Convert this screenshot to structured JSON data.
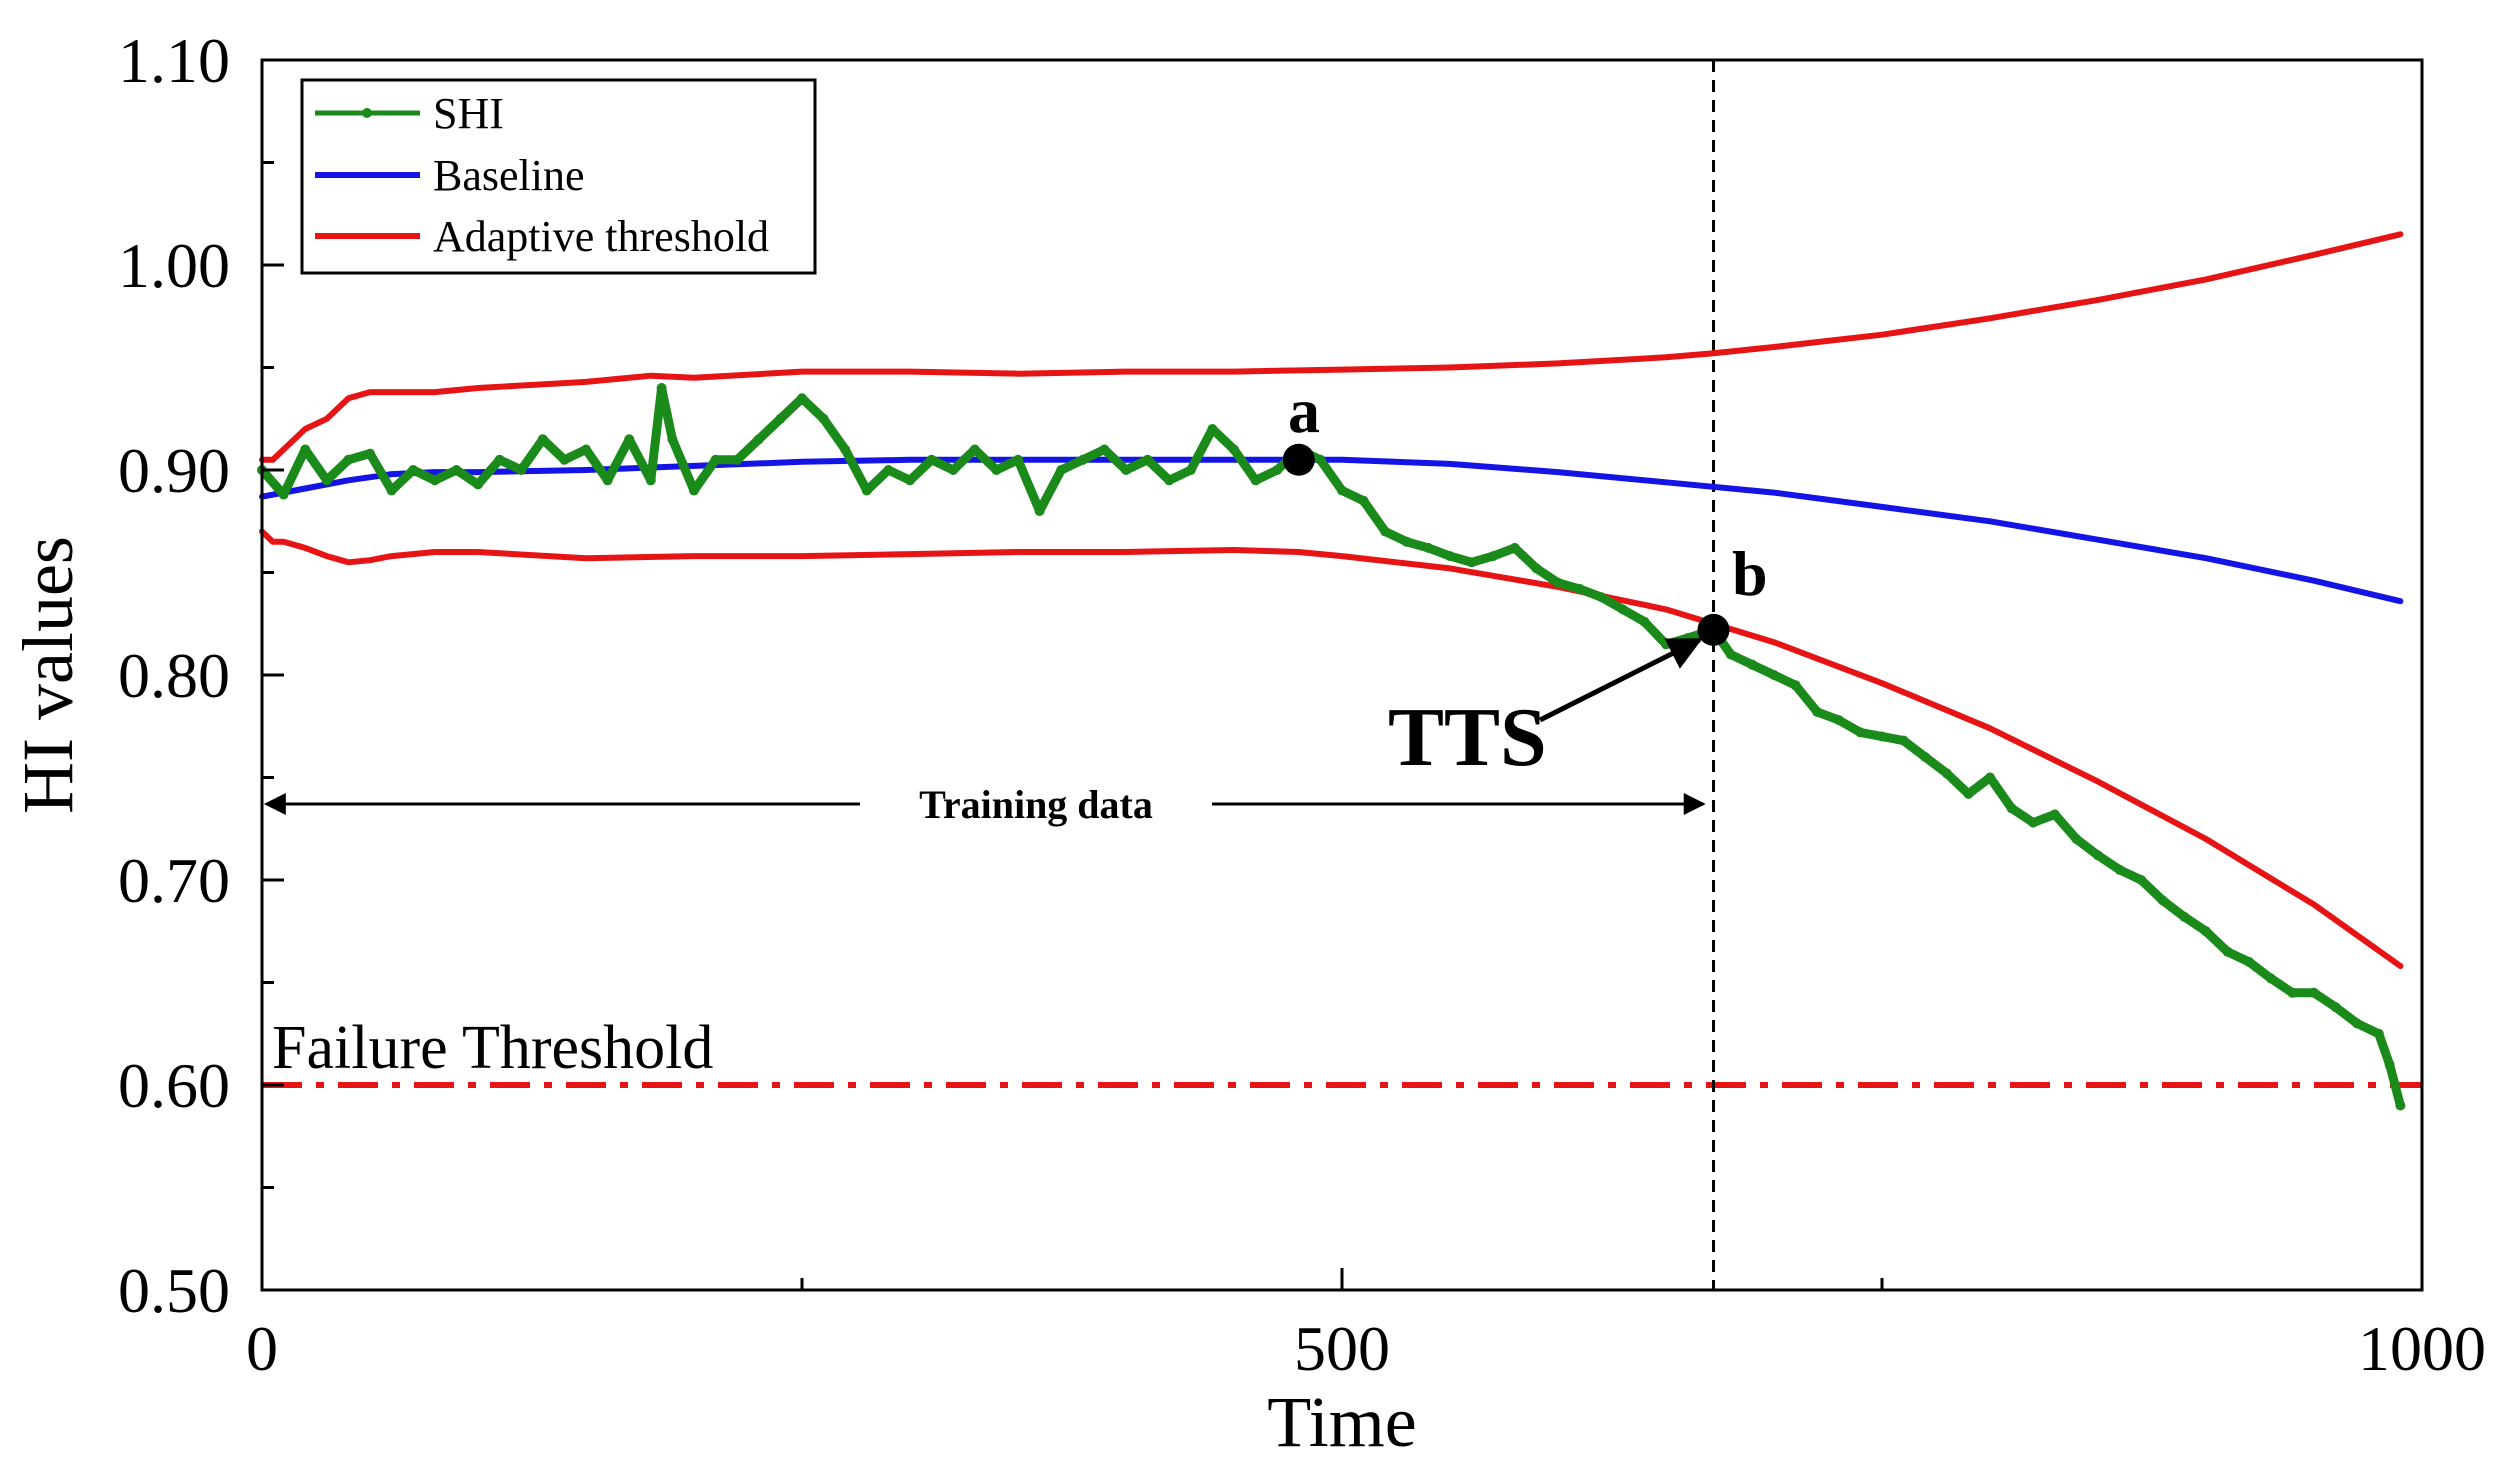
{
  "chart_data": {
    "type": "line",
    "title": "",
    "xlabel": "Time",
    "ylabel": "HI values",
    "xlim": [
      0,
      1000
    ],
    "ylim": [
      0.5,
      1.1
    ],
    "x_ticks": [
      0,
      500,
      1000
    ],
    "x_tick_labels": [
      "0",
      "500",
      "1000"
    ],
    "x_minor_ticks": [
      250,
      750
    ],
    "y_ticks": [
      0.5,
      0.6,
      0.7,
      0.8,
      0.9,
      1.0,
      1.1
    ],
    "y_tick_labels": [
      "0.50",
      "0.60",
      "0.70",
      "0.80",
      "0.90",
      "1.00",
      "1.10"
    ],
    "y_minor_ticks": [
      0.55,
      0.65,
      0.75,
      0.85,
      0.95,
      1.05
    ],
    "grid": false,
    "legend": {
      "position": "top-left",
      "entries": [
        "SHI",
        "Baseline",
        "Adaptive threshold"
      ]
    },
    "series": [
      {
        "name": "SHI",
        "color": "#1a8a1a",
        "marker": "dot",
        "x": [
          0,
          10,
          20,
          30,
          40,
          50,
          60,
          70,
          80,
          90,
          100,
          110,
          120,
          130,
          140,
          150,
          160,
          170,
          180,
          185,
          190,
          200,
          210,
          220,
          230,
          240,
          250,
          260,
          270,
          280,
          290,
          300,
          310,
          320,
          330,
          340,
          350,
          360,
          370,
          380,
          390,
          400,
          410,
          420,
          430,
          440,
          450,
          460,
          470,
          480,
          490,
          500,
          510,
          520,
          530,
          540,
          550,
          560,
          570,
          580,
          590,
          600,
          610,
          620,
          630,
          640,
          650,
          660,
          672,
          680,
          690,
          700,
          710,
          720,
          730,
          740,
          750,
          760,
          770,
          780,
          790,
          800,
          810,
          820,
          830,
          840,
          850,
          860,
          870,
          880,
          890,
          900,
          910,
          920,
          930,
          940,
          950,
          960,
          970,
          980,
          985,
          990
        ],
        "y": [
          0.9,
          0.888,
          0.91,
          0.895,
          0.905,
          0.908,
          0.89,
          0.9,
          0.895,
          0.9,
          0.893,
          0.905,
          0.9,
          0.915,
          0.905,
          0.91,
          0.895,
          0.915,
          0.895,
          0.94,
          0.915,
          0.89,
          0.905,
          0.905,
          0.915,
          0.925,
          0.935,
          0.925,
          0.91,
          0.89,
          0.9,
          0.895,
          0.905,
          0.9,
          0.91,
          0.9,
          0.905,
          0.88,
          0.9,
          0.905,
          0.91,
          0.9,
          0.905,
          0.895,
          0.9,
          0.92,
          0.91,
          0.895,
          0.9,
          0.91,
          0.905,
          0.89,
          0.885,
          0.87,
          0.865,
          0.862,
          0.858,
          0.855,
          0.858,
          0.862,
          0.852,
          0.845,
          0.842,
          0.838,
          0.832,
          0.826,
          0.815,
          0.818,
          0.822,
          0.81,
          0.805,
          0.8,
          0.795,
          0.782,
          0.778,
          0.772,
          0.77,
          0.768,
          0.76,
          0.752,
          0.742,
          0.75,
          0.735,
          0.728,
          0.732,
          0.72,
          0.712,
          0.705,
          0.7,
          0.69,
          0.682,
          0.675,
          0.665,
          0.66,
          0.652,
          0.645,
          0.645,
          0.638,
          0.63,
          0.625,
          0.61,
          0.59
        ]
      },
      {
        "name": "Baseline",
        "color": "#1414e6",
        "x": [
          0,
          20,
          40,
          60,
          80,
          100,
          150,
          200,
          250,
          300,
          350,
          400,
          450,
          480,
          500,
          550,
          600,
          650,
          700,
          750,
          800,
          850,
          900,
          950,
          990
        ],
        "y": [
          0.887,
          0.891,
          0.895,
          0.898,
          0.899,
          0.899,
          0.9,
          0.902,
          0.904,
          0.905,
          0.905,
          0.905,
          0.905,
          0.905,
          0.905,
          0.903,
          0.899,
          0.894,
          0.889,
          0.882,
          0.875,
          0.866,
          0.857,
          0.846,
          0.836
        ]
      },
      {
        "name": "Adaptive threshold",
        "color": "#e61414",
        "x": [
          0,
          5,
          10,
          20,
          30,
          40,
          50,
          60,
          80,
          100,
          150,
          180,
          200,
          250,
          300,
          350,
          400,
          450,
          500,
          550,
          600,
          650,
          672,
          700,
          750,
          800,
          850,
          900,
          950,
          990
        ],
        "y": [
          0.905,
          0.905,
          0.91,
          0.92,
          0.925,
          0.935,
          0.938,
          0.938,
          0.938,
          0.94,
          0.943,
          0.946,
          0.945,
          0.948,
          0.948,
          0.947,
          0.948,
          0.948,
          0.949,
          0.95,
          0.952,
          0.955,
          0.957,
          0.96,
          0.966,
          0.974,
          0.983,
          0.993,
          1.005,
          1.015
        ]
      },
      {
        "name": "Adaptive threshold lower",
        "color": "#e61414",
        "x": [
          0,
          5,
          10,
          20,
          30,
          40,
          50,
          60,
          80,
          100,
          150,
          200,
          250,
          300,
          350,
          400,
          450,
          480,
          500,
          550,
          600,
          650,
          700,
          750,
          800,
          850,
          900,
          950,
          990
        ],
        "y": [
          0.87,
          0.865,
          0.865,
          0.862,
          0.858,
          0.855,
          0.856,
          0.858,
          0.86,
          0.86,
          0.857,
          0.858,
          0.858,
          0.859,
          0.86,
          0.86,
          0.861,
          0.86,
          0.858,
          0.852,
          0.843,
          0.832,
          0.816,
          0.796,
          0.774,
          0.748,
          0.72,
          0.688,
          0.658
        ]
      }
    ],
    "failure_threshold": {
      "y": 0.6,
      "label": "Failure Threshold",
      "color": "#e61414"
    },
    "vertical_marker": {
      "x": 672
    },
    "annotations": {
      "point_a": {
        "label": "a",
        "x": 480,
        "y": 0.905
      },
      "point_b": {
        "label": "b",
        "x": 672,
        "y": 0.822
      },
      "tts_label": "TTS",
      "training_label": "Training data",
      "training_range": [
        0,
        672
      ]
    }
  }
}
